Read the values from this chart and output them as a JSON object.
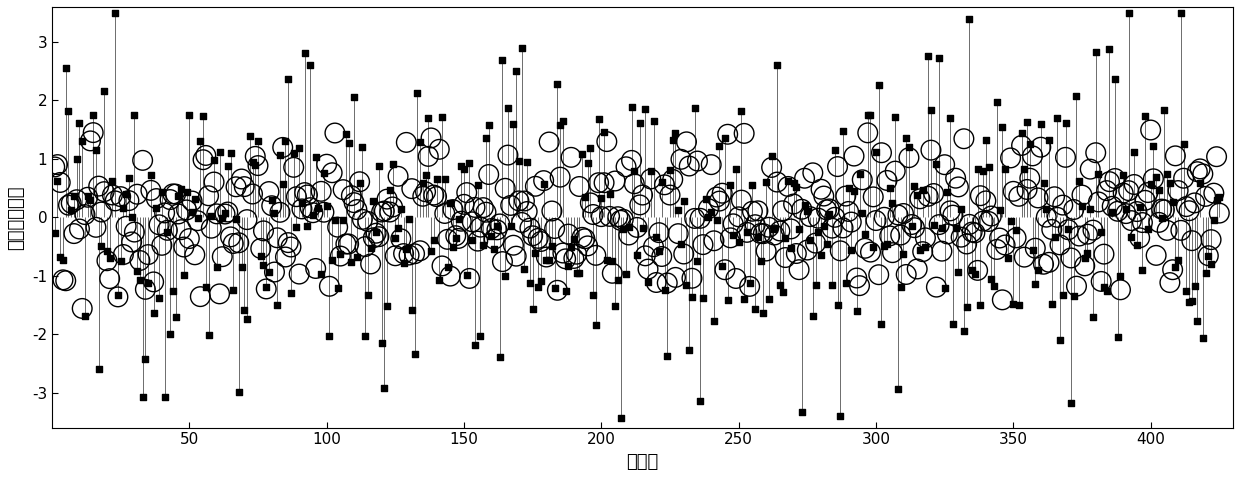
{
  "n_points": 425,
  "seed": 12345,
  "ylabel": "残差量值区间",
  "xlabel": "样本点",
  "ylim": [
    -3.6,
    3.6
  ],
  "xlim": [
    0,
    430
  ],
  "xticks": [
    50,
    100,
    150,
    200,
    250,
    300,
    350,
    400
  ],
  "yticks": [
    -3,
    -2,
    -1,
    0,
    1,
    2,
    3
  ],
  "figsize": [
    12.4,
    4.78
  ],
  "dpi": 100,
  "stem_color": "#555555",
  "dot_color": "black",
  "circle_color": "black",
  "stem_linewidth": 0.6,
  "dot_size": 18,
  "circle_size": 200,
  "circle_linewidth": 1.0,
  "circle_min": 0.25,
  "circle_max": 1.6,
  "font_size_labels": 13,
  "tick_fontsize": 11
}
